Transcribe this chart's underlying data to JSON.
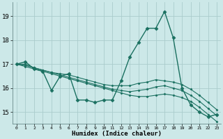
{
  "xlabel": "Humidex (Indice chaleur)",
  "ylabel": "",
  "bg_color": "#cce8e8",
  "grid_color": "#aacccc",
  "line_color": "#1a7060",
  "xlim": [
    -0.5,
    23.5
  ],
  "ylim": [
    14.5,
    19.6
  ],
  "yticks": [
    15,
    16,
    17,
    18,
    19
  ],
  "xticks": [
    0,
    1,
    2,
    3,
    4,
    5,
    6,
    7,
    8,
    9,
    10,
    11,
    12,
    13,
    14,
    15,
    16,
    17,
    18,
    19,
    20,
    21,
    22,
    23
  ],
  "series": [
    {
      "x": [
        0,
        1,
        2,
        3,
        4,
        5,
        6,
        7,
        8,
        9,
        10,
        11,
        12,
        13,
        14,
        15,
        16,
        17,
        18,
        19,
        20,
        21,
        22,
        23
      ],
      "y": [
        17.0,
        17.1,
        16.8,
        16.7,
        15.9,
        16.5,
        16.6,
        15.5,
        15.5,
        15.4,
        15.5,
        15.5,
        16.3,
        17.3,
        17.9,
        18.5,
        18.5,
        19.2,
        18.1,
        16.0,
        15.3,
        15.0,
        14.8,
        14.9
      ],
      "marker": "D",
      "markersize": 2.5,
      "linewidth": 1.0
    },
    {
      "x": [
        0,
        1,
        2,
        3,
        4,
        5,
        6,
        7,
        8,
        9,
        10,
        11,
        12,
        13,
        14,
        15,
        16,
        17,
        18,
        19,
        20,
        21,
        22,
        23
      ],
      "y": [
        17.0,
        17.0,
        16.85,
        16.75,
        16.65,
        16.6,
        16.55,
        16.45,
        16.35,
        16.25,
        16.15,
        16.1,
        16.1,
        16.1,
        16.2,
        16.25,
        16.35,
        16.3,
        16.25,
        16.15,
        15.95,
        15.7,
        15.4,
        15.1
      ],
      "marker": "D",
      "markersize": 1.5,
      "linewidth": 0.8
    },
    {
      "x": [
        0,
        1,
        2,
        3,
        4,
        5,
        6,
        7,
        8,
        9,
        10,
        11,
        12,
        13,
        14,
        15,
        16,
        17,
        18,
        19,
        20,
        21,
        22,
        23
      ],
      "y": [
        17.0,
        16.95,
        16.85,
        16.75,
        16.65,
        16.55,
        16.45,
        16.35,
        16.25,
        16.15,
        16.05,
        15.95,
        15.9,
        15.85,
        15.9,
        15.95,
        16.05,
        16.1,
        16.0,
        15.9,
        15.7,
        15.45,
        15.15,
        14.85
      ],
      "marker": "D",
      "markersize": 1.5,
      "linewidth": 0.8
    },
    {
      "x": [
        0,
        1,
        2,
        3,
        4,
        5,
        6,
        7,
        8,
        9,
        10,
        11,
        12,
        13,
        14,
        15,
        16,
        17,
        18,
        19,
        20,
        21,
        22,
        23
      ],
      "y": [
        17.0,
        16.9,
        16.8,
        16.7,
        16.6,
        16.5,
        16.4,
        16.3,
        16.2,
        16.1,
        16.0,
        15.9,
        15.8,
        15.7,
        15.65,
        15.65,
        15.7,
        15.75,
        15.7,
        15.6,
        15.45,
        15.2,
        14.9,
        14.6
      ],
      "marker": "D",
      "markersize": 1.5,
      "linewidth": 0.8
    }
  ]
}
